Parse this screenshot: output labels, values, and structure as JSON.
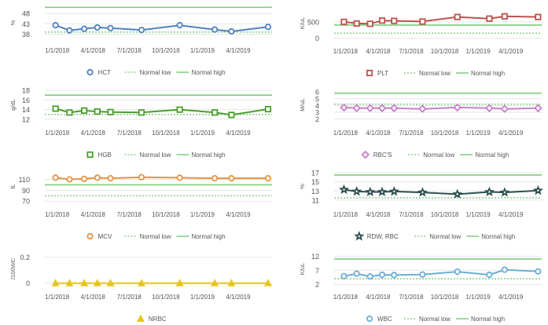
{
  "x_tick_labels": [
    "1/1/2018",
    "4/1/2018",
    "7/1/2018",
    "10/1/2018",
    "1/1/2019",
    "4/1/2019"
  ],
  "legend_labels": {
    "normal_low": "Normal low",
    "normal_high": "Normal high"
  },
  "colors": {
    "normal_low": "#8fd08f",
    "normal_high": "#7ccd7c",
    "grid": "#e6e6e6"
  },
  "chart_data": [
    {
      "type": "line",
      "ylabel": "%",
      "yticks": [
        "38",
        "43",
        "48"
      ],
      "ylim": [
        35.5,
        51.5
      ],
      "series": [
        {
          "name": "HCT",
          "color": "#4f81bd",
          "marker": "circle",
          "x": [
            "2017-12-28",
            "2018-02-01",
            "2018-03-10",
            "2018-04-12",
            "2018-05-15",
            "2018-08-01",
            "2018-11-05",
            "2019-02-01",
            "2019-03-15",
            "2019-06-15"
          ],
          "values": [
            42.3,
            39.8,
            40.6,
            41.2,
            40.9,
            40.0,
            42.3,
            40.2,
            39.3,
            41.5
          ]
        }
      ],
      "normal_low": 39,
      "normal_high": 51
    },
    {
      "type": "line",
      "ylabel": "K/uL",
      "yticks": [
        "0",
        "500"
      ],
      "ylim": [
        -60,
        980
      ],
      "series": [
        {
          "name": "PLT",
          "color": "#c0504d",
          "marker": "square",
          "x": [
            "2017-12-28",
            "2018-02-01",
            "2018-03-10",
            "2018-04-12",
            "2018-05-15",
            "2018-08-01",
            "2018-11-05",
            "2019-02-01",
            "2019-03-15",
            "2019-06-15"
          ],
          "values": [
            500,
            450,
            440,
            540,
            530,
            510,
            650,
            600,
            670,
            650
          ]
        }
      ],
      "normal_low": 150,
      "normal_high": 400
    },
    {
      "type": "line",
      "ylabel": "g/dL",
      "yticks": [
        "12",
        "14",
        "16",
        "18"
      ],
      "ylim": [
        11.5,
        18.5
      ],
      "series": [
        {
          "name": "HGB",
          "color": "#4aa02c",
          "marker": "square",
          "x": [
            "2017-12-28",
            "2018-02-01",
            "2018-03-10",
            "2018-04-12",
            "2018-05-15",
            "2018-08-01",
            "2018-11-05",
            "2019-02-01",
            "2019-03-15",
            "2019-06-15"
          ],
          "values": [
            14.2,
            13.4,
            13.8,
            13.6,
            13.5,
            13.4,
            14.0,
            13.4,
            12.9,
            14.1
          ]
        }
      ],
      "normal_low": 13,
      "normal_high": 17
    },
    {
      "type": "line",
      "ylabel": "M/uL",
      "yticks": [
        "2",
        "3",
        "4",
        "5",
        "6"
      ],
      "ylim": [
        1.6,
        6.6
      ],
      "series": [
        {
          "name": "RBC'S",
          "color": "#c77fc7",
          "marker": "diamond",
          "x": [
            "2017-12-28",
            "2018-02-01",
            "2018-03-10",
            "2018-04-12",
            "2018-05-15",
            "2018-08-01",
            "2018-11-05",
            "2019-02-01",
            "2019-03-15",
            "2019-06-15"
          ],
          "values": [
            3.7,
            3.6,
            3.6,
            3.6,
            3.6,
            3.5,
            3.7,
            3.6,
            3.5,
            3.6
          ]
        }
      ],
      "normal_low": 4.2,
      "normal_high": 5.8
    },
    {
      "type": "line",
      "ylabel": "fL",
      "yticks": [
        "70",
        "90",
        "110"
      ],
      "ylim": [
        66,
        128
      ],
      "series": [
        {
          "name": "MCV",
          "color": "#e39444",
          "marker": "circle",
          "x": [
            "2017-12-28",
            "2018-02-01",
            "2018-03-10",
            "2018-04-12",
            "2018-05-15",
            "2018-08-01",
            "2018-11-05",
            "2019-02-01",
            "2019-03-15",
            "2019-06-15"
          ],
          "values": [
            113,
            110,
            111,
            113,
            112,
            114,
            113,
            112,
            112,
            112
          ]
        }
      ],
      "normal_low": 80,
      "normal_high": 100
    },
    {
      "type": "line",
      "ylabel": "%",
      "yticks": [
        "11",
        "13",
        "15",
        "17"
      ],
      "ylim": [
        10.3,
        17.7
      ],
      "series": [
        {
          "name": "RDW, RBC",
          "color": "#2f4f4f",
          "marker": "star",
          "x": [
            "2017-12-28",
            "2018-02-01",
            "2018-03-10",
            "2018-04-12",
            "2018-05-15",
            "2018-08-01",
            "2018-11-05",
            "2019-02-01",
            "2019-03-15",
            "2019-06-15"
          ],
          "values": [
            13.3,
            12.9,
            12.8,
            12.8,
            12.9,
            12.7,
            12.3,
            12.8,
            12.7,
            13.1
          ]
        }
      ],
      "normal_low": 11.5,
      "normal_high": 16.5
    },
    {
      "type": "line",
      "ylabel": "/100WC",
      "yticks": [
        "0",
        "0.2"
      ],
      "ylim": [
        -0.02,
        0.24
      ],
      "series": [
        {
          "name": "NRBC",
          "color": "#e8c51c",
          "marker": "triangle",
          "x": [
            "2017-12-28",
            "2018-02-01",
            "2018-03-10",
            "2018-04-12",
            "2018-05-15",
            "2018-08-01",
            "2018-11-05",
            "2019-02-01",
            "2019-03-15",
            "2019-06-15"
          ],
          "values": [
            0,
            0,
            0,
            0,
            0,
            0,
            0,
            0,
            0,
            0
          ]
        }
      ]
    },
    {
      "type": "line",
      "ylabel": "K/uL",
      "yticks": [
        "2",
        "7",
        "12"
      ],
      "ylim": [
        1.5,
        13.5
      ],
      "series": [
        {
          "name": "WBC",
          "color": "#6baed6",
          "marker": "circle",
          "x": [
            "2017-12-28",
            "2018-02-01",
            "2018-03-10",
            "2018-04-12",
            "2018-05-15",
            "2018-08-01",
            "2018-11-05",
            "2019-02-01",
            "2019-03-15",
            "2019-06-15"
          ],
          "values": [
            4.9,
            5.8,
            4.8,
            5.4,
            5.3,
            5.5,
            6.5,
            5.4,
            7.2,
            6.6
          ]
        }
      ],
      "normal_low": 4,
      "normal_high": 11
    }
  ]
}
